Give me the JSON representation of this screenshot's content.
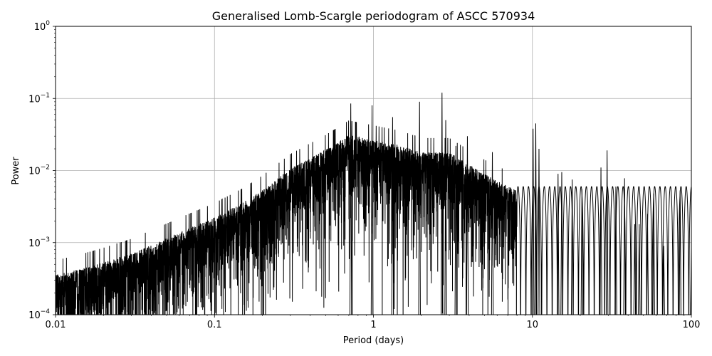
{
  "chart_data": {
    "type": "line",
    "title": "Generalised Lomb-Scargle periodogram of ASCC 570934",
    "xlabel": "Period (days)",
    "ylabel": "Power",
    "xscale": "log",
    "yscale": "log",
    "xlim": [
      0.01,
      100
    ],
    "ylim": [
      0.0001,
      1
    ],
    "grid": true,
    "line_color": "#000000",
    "grid_color": "#b0b0b0",
    "x_ticks": [
      {
        "value": 0.01,
        "label": "0.01"
      },
      {
        "value": 0.1,
        "label": "0.1"
      },
      {
        "value": 1,
        "label": "1"
      },
      {
        "value": 10,
        "label": "10"
      },
      {
        "value": 100,
        "label": "100"
      }
    ],
    "y_ticks": [
      {
        "value": 0.0001,
        "base": "10",
        "exp": "−4"
      },
      {
        "value": 0.001,
        "base": "10",
        "exp": "−3"
      },
      {
        "value": 0.01,
        "base": "10",
        "exp": "−2"
      },
      {
        "value": 0.1,
        "base": "10",
        "exp": "−1"
      },
      {
        "value": 1,
        "base": "10",
        "exp": "0"
      }
    ],
    "envelope": [
      {
        "x": 0.01,
        "y": 0.0004
      },
      {
        "x": 0.015,
        "y": 0.0005
      },
      {
        "x": 0.02,
        "y": 0.0006
      },
      {
        "x": 0.03,
        "y": 0.0008
      },
      {
        "x": 0.05,
        "y": 0.0013
      },
      {
        "x": 0.07,
        "y": 0.0018
      },
      {
        "x": 0.1,
        "y": 0.0025
      },
      {
        "x": 0.15,
        "y": 0.004
      },
      {
        "x": 0.2,
        "y": 0.006
      },
      {
        "x": 0.3,
        "y": 0.012
      },
      {
        "x": 0.5,
        "y": 0.022
      },
      {
        "x": 0.7,
        "y": 0.035
      },
      {
        "x": 1.0,
        "y": 0.03
      },
      {
        "x": 1.5,
        "y": 0.025
      },
      {
        "x": 2.0,
        "y": 0.02
      },
      {
        "x": 3.0,
        "y": 0.02
      },
      {
        "x": 5.0,
        "y": 0.01
      },
      {
        "x": 8.0,
        "y": 0.006
      }
    ],
    "peaks": [
      {
        "x": 0.72,
        "y": 0.085
      },
      {
        "x": 0.98,
        "y": 0.08
      },
      {
        "x": 1.32,
        "y": 0.055
      },
      {
        "x": 1.95,
        "y": 0.09
      },
      {
        "x": 2.7,
        "y": 0.12
      },
      {
        "x": 2.85,
        "y": 0.05
      },
      {
        "x": 3.3,
        "y": 0.022
      },
      {
        "x": 3.9,
        "y": 0.03
      },
      {
        "x": 5.6,
        "y": 0.018
      },
      {
        "x": 10.1,
        "y": 0.038
      },
      {
        "x": 10.5,
        "y": 0.045
      },
      {
        "x": 11.0,
        "y": 0.02
      },
      {
        "x": 14.5,
        "y": 0.009
      },
      {
        "x": 15.3,
        "y": 0.0095
      },
      {
        "x": 17.8,
        "y": 0.0075
      },
      {
        "x": 20.5,
        "y": 0.0055
      },
      {
        "x": 27.0,
        "y": 0.011
      },
      {
        "x": 29.5,
        "y": 0.019
      },
      {
        "x": 33.5,
        "y": 0.006
      },
      {
        "x": 38.0,
        "y": 0.0078
      },
      {
        "x": 44.0,
        "y": 0.0018
      },
      {
        "x": 47.0,
        "y": 0.0018
      },
      {
        "x": 53.0,
        "y": 0.0025
      },
      {
        "x": 58.0,
        "y": 0.0048
      },
      {
        "x": 67.0,
        "y": 0.0009
      },
      {
        "x": 85.0,
        "y": 0.0053
      },
      {
        "x": 100.0,
        "y": 0.00085
      }
    ]
  }
}
